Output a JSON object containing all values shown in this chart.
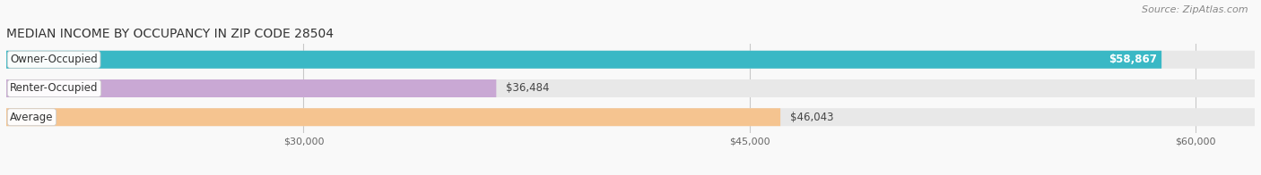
{
  "title": "MEDIAN INCOME BY OCCUPANCY IN ZIP CODE 28504",
  "source": "Source: ZipAtlas.com",
  "categories": [
    "Owner-Occupied",
    "Renter-Occupied",
    "Average"
  ],
  "values": [
    58867,
    36484,
    46043
  ],
  "bar_colors": [
    "#3ab8c5",
    "#c9a8d4",
    "#f5c490"
  ],
  "bar_bg_color": "#e8e8e8",
  "background_color": "#f9f9f9",
  "xmin": 20000,
  "xmax": 62000,
  "xticks": [
    30000,
    45000,
    60000
  ],
  "xtick_labels": [
    "$30,000",
    "$45,000",
    "$60,000"
  ],
  "value_labels": [
    "$58,867",
    "$36,484",
    "$46,043"
  ],
  "title_fontsize": 10,
  "label_fontsize": 8.5,
  "tick_fontsize": 8,
  "source_fontsize": 8,
  "bar_height": 0.62
}
